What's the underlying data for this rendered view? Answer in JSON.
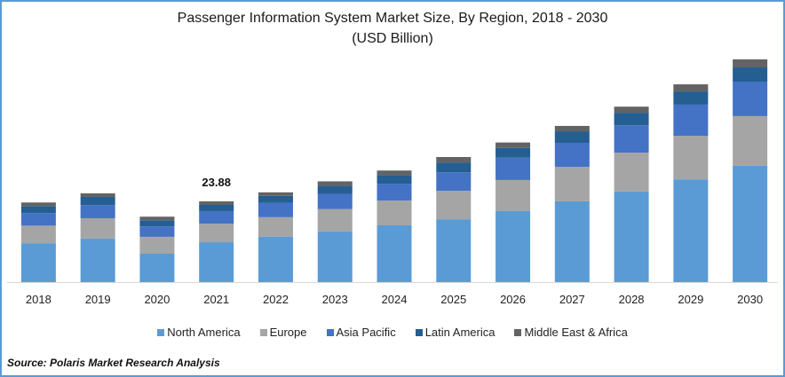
{
  "chart_data": {
    "type": "bar",
    "stacked": true,
    "title": "Passenger Information System Market Size, By Region, 2018 - 2030",
    "subtitle": "(USD Billion)",
    "xlabel": "",
    "ylabel": "",
    "ylim": [
      0,
      70
    ],
    "grid": false,
    "legend_position": "bottom",
    "categories": [
      "2018",
      "2019",
      "2020",
      "2021",
      "2022",
      "2023",
      "2024",
      "2025",
      "2026",
      "2027",
      "2028",
      "2029",
      "2030"
    ],
    "series": [
      {
        "name": "North America",
        "color": "#5b9bd5",
        "values": [
          11.5,
          12.9,
          8.4,
          11.8,
          13.4,
          15.0,
          16.8,
          18.6,
          21.0,
          23.9,
          26.8,
          30.4,
          34.4
        ]
      },
      {
        "name": "Europe",
        "color": "#a5a5a5",
        "values": [
          5.2,
          6.0,
          5.0,
          5.5,
          5.8,
          6.6,
          7.3,
          8.4,
          9.2,
          10.2,
          11.5,
          12.9,
          14.7
        ]
      },
      {
        "name": "Asia Pacific",
        "color": "#4472c4",
        "values": [
          3.7,
          3.9,
          3.1,
          3.7,
          4.2,
          4.5,
          5.0,
          5.5,
          6.6,
          7.1,
          8.1,
          9.2,
          10.2
        ]
      },
      {
        "name": "Latin America",
        "color": "#255e91",
        "values": [
          2.1,
          2.4,
          1.8,
          1.83,
          2.1,
          2.4,
          2.6,
          2.9,
          2.9,
          3.4,
          3.7,
          3.9,
          4.2
        ]
      },
      {
        "name": "Middle East & Africa",
        "color": "#636363",
        "values": [
          1.05,
          1.05,
          1.05,
          1.05,
          1.05,
          1.3,
          1.3,
          1.6,
          1.6,
          1.6,
          1.8,
          2.1,
          2.4
        ]
      }
    ],
    "annotations": [
      {
        "category": "2021",
        "text": "23.88"
      }
    ]
  },
  "source": "Source: Polaris  Market Research Analysis"
}
